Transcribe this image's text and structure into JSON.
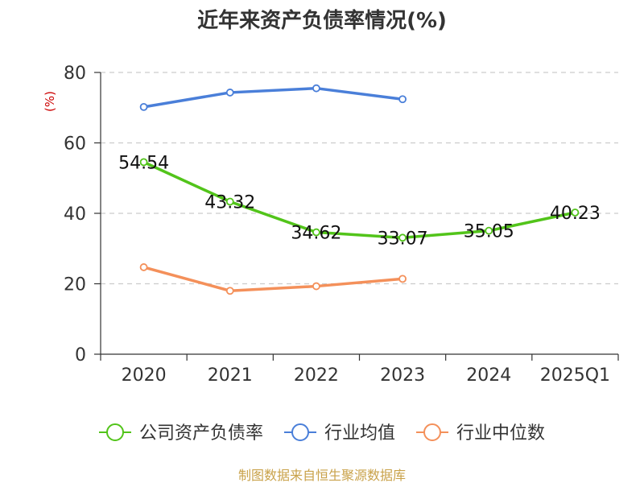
{
  "chart_data": {
    "type": "line",
    "title": "近年来资产负债率情况(%)",
    "ylabel": "(%)",
    "xlabel": "",
    "ylim": [
      0,
      80
    ],
    "yticks": [
      0,
      20,
      40,
      60,
      80
    ],
    "grid": true,
    "legend_position": "bottom",
    "categories": [
      "2020",
      "2021",
      "2022",
      "2023",
      "2024",
      "2025Q1"
    ],
    "series": [
      {
        "name": "公司资产负债率",
        "color": "#52c41a",
        "values": [
          54.54,
          43.32,
          34.62,
          33.07,
          35.05,
          40.23
        ],
        "labels": [
          "54.54",
          "43.32",
          "34.62",
          "33.07",
          "35.05",
          "40.23"
        ]
      },
      {
        "name": "行业均值",
        "color": "#4a7fd9",
        "values": [
          70.2,
          74.3,
          75.5,
          72.4,
          null,
          null
        ]
      },
      {
        "name": "行业中位数",
        "color": "#f4905a",
        "values": [
          24.7,
          18.0,
          19.3,
          21.4,
          null,
          null
        ]
      }
    ],
    "source": "制图数据来自恒生聚源数据库"
  }
}
